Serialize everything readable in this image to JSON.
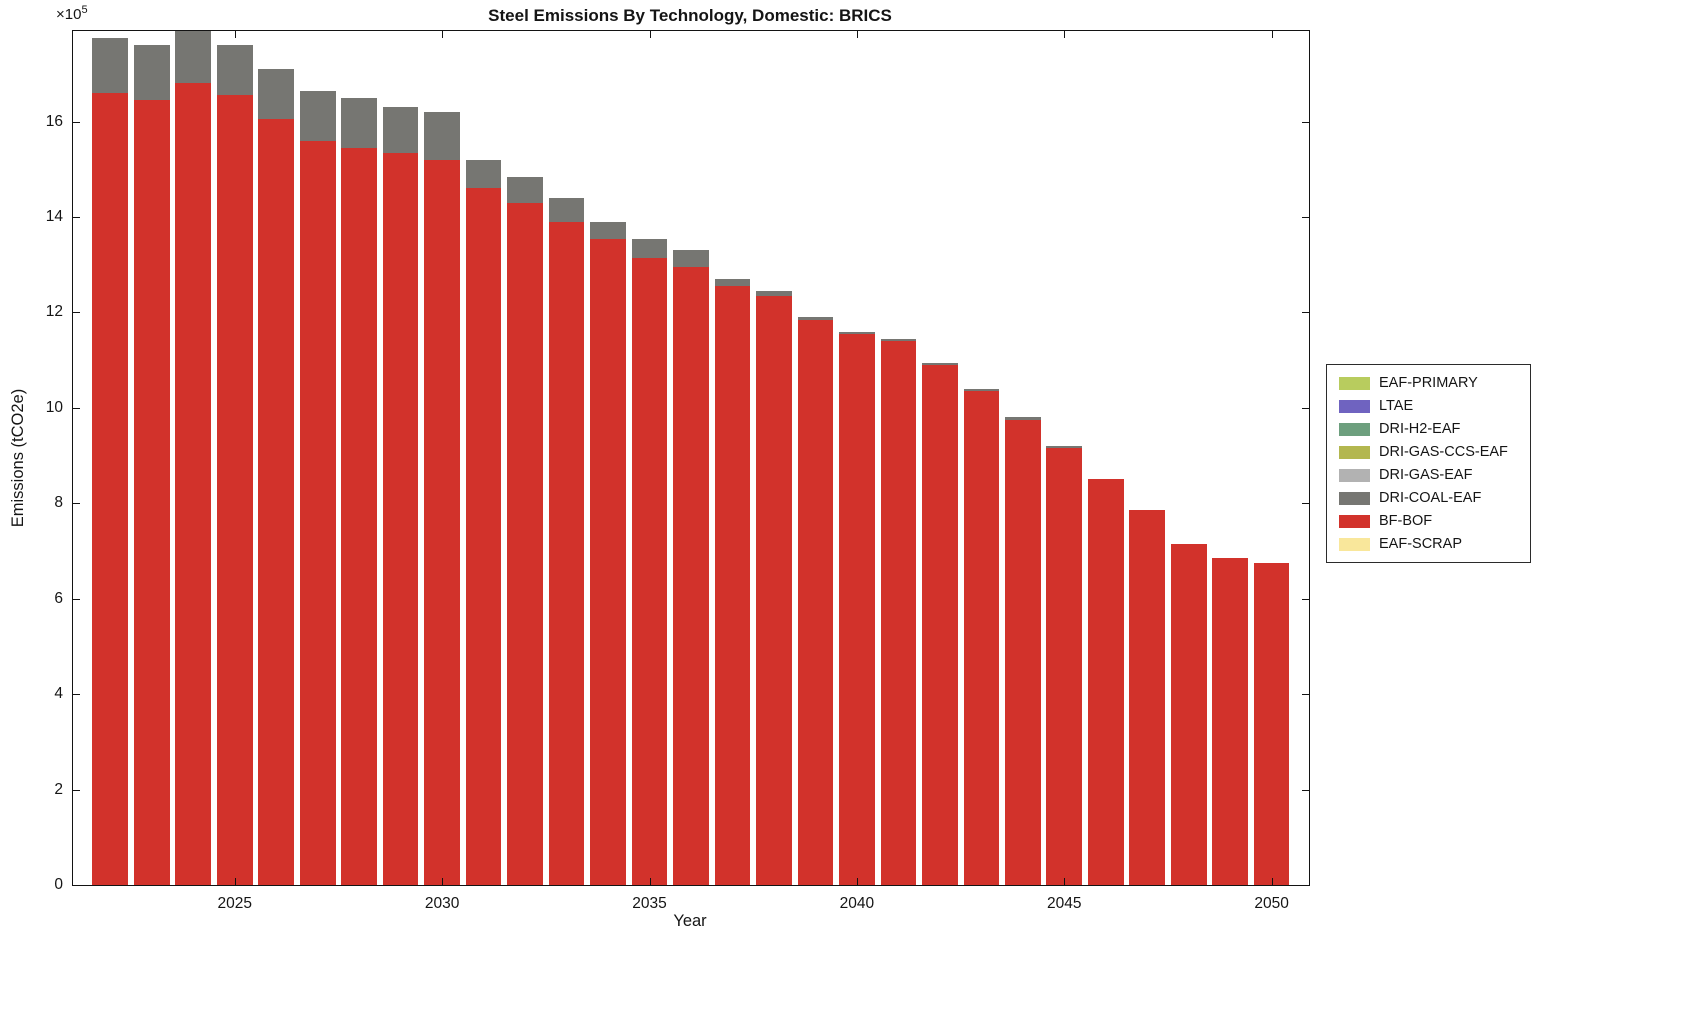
{
  "chart_data": {
    "type": "bar",
    "stacked": true,
    "title": "Steel Emissions By Technology, Domestic: BRICS",
    "xlabel": "Year",
    "ylabel": "Emissions (tCO2e)",
    "y_axis_multiplier": {
      "base": "×10",
      "exponent": "5"
    },
    "xlim": [
      2021.1,
      2050.9
    ],
    "ylim": [
      0,
      17.9
    ],
    "xticks": [
      2025,
      2030,
      2035,
      2040,
      2045,
      2050
    ],
    "yticks": [
      0,
      2,
      4,
      6,
      8,
      10,
      12,
      14,
      16
    ],
    "grid": false,
    "legend_position": "right-outside",
    "x": [
      2022,
      2023,
      2024,
      2025,
      2026,
      2027,
      2028,
      2029,
      2030,
      2031,
      2032,
      2033,
      2034,
      2035,
      2036,
      2037,
      2038,
      2039,
      2040,
      2041,
      2042,
      2043,
      2044,
      2045,
      2046,
      2047,
      2048,
      2049,
      2050
    ],
    "value_units": "1e5 tCO2e",
    "series": [
      {
        "name": "EAF-SCRAP",
        "color": "#F9E79B",
        "values": [
          0,
          0,
          0,
          0,
          0,
          0,
          0,
          0,
          0,
          0,
          0,
          0,
          0,
          0,
          0,
          0,
          0,
          0,
          0,
          0,
          0,
          0,
          0,
          0,
          0,
          0,
          0,
          0,
          0
        ]
      },
      {
        "name": "BF-BOF",
        "color": "#D2322B",
        "values": [
          16.6,
          16.45,
          16.8,
          16.55,
          16.05,
          15.6,
          15.45,
          15.35,
          15.2,
          14.6,
          14.3,
          13.9,
          13.55,
          13.15,
          12.95,
          12.55,
          12.35,
          11.85,
          11.55,
          11.4,
          10.9,
          10.35,
          9.75,
          9.15,
          8.5,
          7.85,
          7.15,
          6.85,
          6.75
        ]
      },
      {
        "name": "DRI-COAL-EAF",
        "color": "#767672",
        "values": [
          1.15,
          1.15,
          1.15,
          1.05,
          1.05,
          1.05,
          1.05,
          0.95,
          1.0,
          0.6,
          0.55,
          0.5,
          0.35,
          0.4,
          0.35,
          0.15,
          0.1,
          0.05,
          0.05,
          0.05,
          0.05,
          0.05,
          0.05,
          0.05,
          0,
          0,
          0,
          0,
          0
        ]
      },
      {
        "name": "DRI-GAS-EAF",
        "color": "#B2B2B2",
        "values": [
          0,
          0,
          0,
          0,
          0,
          0,
          0,
          0,
          0,
          0,
          0,
          0,
          0,
          0,
          0,
          0,
          0,
          0,
          0,
          0,
          0,
          0,
          0,
          0,
          0,
          0,
          0,
          0,
          0
        ]
      },
      {
        "name": "DRI-GAS-CCS-EAF",
        "color": "#B3B74F",
        "values": [
          0,
          0,
          0,
          0,
          0,
          0,
          0,
          0,
          0,
          0,
          0,
          0,
          0,
          0,
          0,
          0,
          0,
          0,
          0,
          0,
          0,
          0,
          0,
          0,
          0,
          0,
          0,
          0,
          0
        ]
      },
      {
        "name": "DRI-H2-EAF",
        "color": "#6D9F7E",
        "values": [
          0,
          0,
          0,
          0,
          0,
          0,
          0,
          0,
          0,
          0,
          0,
          0,
          0,
          0,
          0,
          0,
          0,
          0,
          0,
          0,
          0,
          0,
          0,
          0,
          0,
          0,
          0,
          0,
          0
        ]
      },
      {
        "name": "LTAE",
        "color": "#6F63C0",
        "values": [
          0,
          0,
          0,
          0,
          0,
          0,
          0,
          0,
          0,
          0,
          0,
          0,
          0,
          0,
          0,
          0,
          0,
          0,
          0,
          0,
          0,
          0,
          0,
          0,
          0,
          0,
          0,
          0,
          0
        ]
      },
      {
        "name": "EAF-PRIMARY",
        "color": "#B8CC5E",
        "values": [
          0,
          0,
          0,
          0,
          0,
          0,
          0,
          0,
          0,
          0,
          0,
          0,
          0,
          0,
          0,
          0,
          0,
          0,
          0,
          0,
          0,
          0,
          0,
          0,
          0,
          0,
          0,
          0,
          0
        ]
      }
    ],
    "legend_items": [
      {
        "label": "EAF-PRIMARY",
        "color": "#B8CC5E"
      },
      {
        "label": "LTAE",
        "color": "#6F63C0"
      },
      {
        "label": "DRI-H2-EAF",
        "color": "#6D9F7E"
      },
      {
        "label": "DRI-GAS-CCS-EAF",
        "color": "#B3B74F"
      },
      {
        "label": "DRI-GAS-EAF",
        "color": "#B2B2B2"
      },
      {
        "label": "DRI-COAL-EAF",
        "color": "#767672"
      },
      {
        "label": "BF-BOF",
        "color": "#D2322B"
      },
      {
        "label": "EAF-SCRAP",
        "color": "#F9E79B"
      }
    ]
  }
}
